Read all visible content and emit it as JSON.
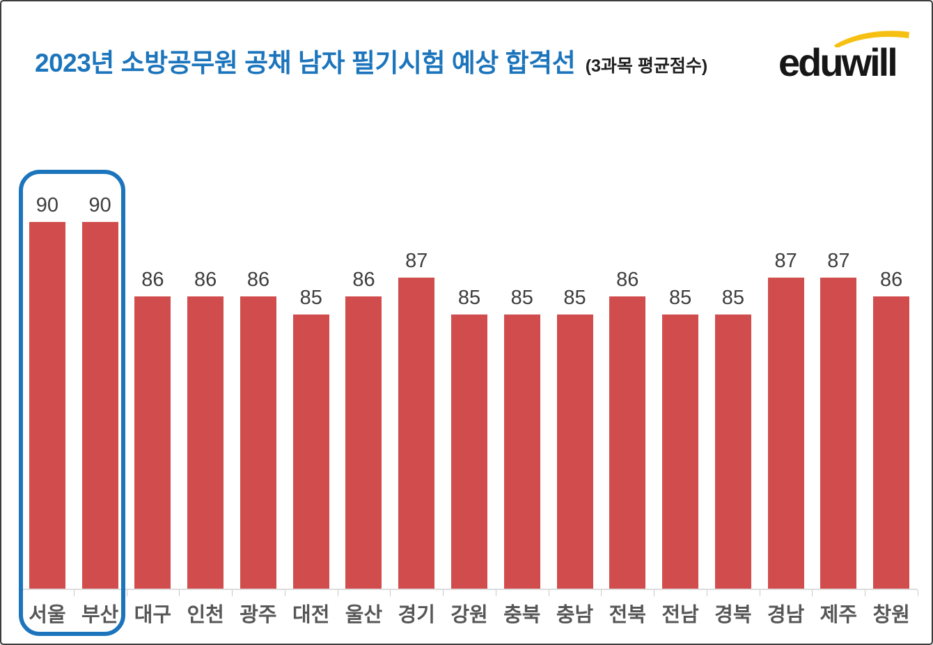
{
  "header": {
    "title": "2023년 소방공무원 공채 남자 필기시험 예상 합격선",
    "subtitle": "(3과목 평균점수)",
    "title_color": "#1c75bc",
    "subtitle_color": "#1f1f1f"
  },
  "logo": {
    "text": "eduwill",
    "text_color": "#161616",
    "swoosh_color": "#f6c013"
  },
  "chart_data": {
    "type": "bar",
    "title": "2023년 소방공무원 공채 남자 필기시험 예상 합격선",
    "subtitle": "(3과목 평균점수)",
    "categories": [
      "서울",
      "부산",
      "대구",
      "인천",
      "광주",
      "대전",
      "울산",
      "경기",
      "강원",
      "충북",
      "충남",
      "전북",
      "전남",
      "경북",
      "경남",
      "제주",
      "창원"
    ],
    "values": [
      90,
      90,
      86,
      86,
      86,
      85,
      86,
      87,
      85,
      85,
      85,
      86,
      85,
      85,
      87,
      87,
      86
    ],
    "xlabel": "",
    "ylabel": "",
    "ylim": [
      70,
      92
    ],
    "grid": false,
    "legend": false,
    "value_labels_shown": true,
    "bar_color": "#d14c4c",
    "value_label_color": "#3d3d3d",
    "category_label_color": "#565656",
    "axis_color": "#dcdcdc",
    "highlight": {
      "categories": [
        "서울",
        "부산"
      ],
      "indices": [
        0,
        1
      ],
      "color": "#1c75bc"
    }
  }
}
